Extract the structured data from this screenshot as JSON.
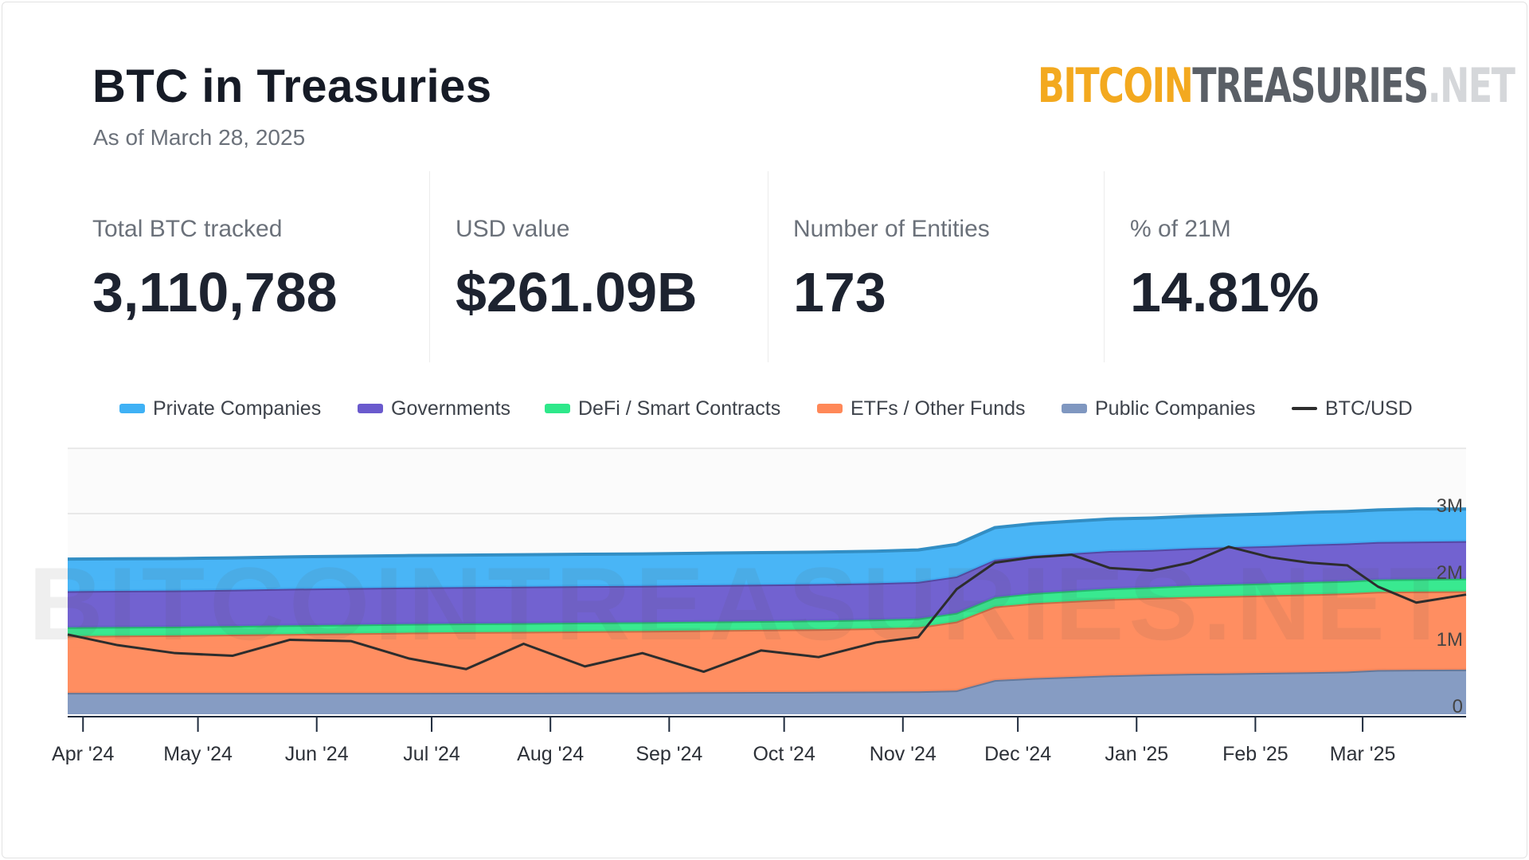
{
  "header": {
    "title": "BTC in Treasuries",
    "subtitle": "As of March 28, 2025",
    "logo": {
      "part1": "BITCOIN",
      "part2": "TREASURIES",
      "part3": ".NET"
    }
  },
  "stats": [
    {
      "label": "Total BTC tracked",
      "value": "3,110,788"
    },
    {
      "label": "USD value",
      "value": "$261.09B"
    },
    {
      "label": "Number of Entities",
      "value": "173"
    },
    {
      "label": "% of 21M",
      "value": "14.81%"
    }
  ],
  "legend": [
    {
      "label": "Private Companies",
      "color": "#3fb1f5"
    },
    {
      "label": "Governments",
      "color": "#6a5acd"
    },
    {
      "label": "DeFi / Smart Contracts",
      "color": "#2ee88a"
    },
    {
      "label": "ETFs / Other Funds",
      "color": "#ff8858"
    },
    {
      "label": "Public Companies",
      "color": "#7f97c0"
    },
    {
      "label": "BTC/USD",
      "color": "#2d2d2d"
    }
  ],
  "watermark": "BITCOINTREASURIES.NET",
  "chart_data": {
    "type": "area",
    "stacked": true,
    "x_dates": [
      "2024-03-28",
      "2024-04-10",
      "2024-04-25",
      "2024-05-10",
      "2024-05-25",
      "2024-06-10",
      "2024-06-25",
      "2024-07-10",
      "2024-07-25",
      "2024-08-10",
      "2024-08-25",
      "2024-09-10",
      "2024-09-25",
      "2024-10-10",
      "2024-10-25",
      "2024-11-05",
      "2024-11-15",
      "2024-11-25",
      "2024-12-05",
      "2024-12-15",
      "2024-12-25",
      "2025-01-05",
      "2025-01-15",
      "2025-01-25",
      "2025-02-05",
      "2025-02-15",
      "2025-02-25",
      "2025-03-05",
      "2025-03-15",
      "2025-03-28"
    ],
    "series": [
      {
        "name": "Public Companies",
        "color": "#7f97c0",
        "values": [
          320000,
          320000,
          320000,
          320000,
          320000,
          320000,
          320000,
          322000,
          322000,
          325000,
          325000,
          330000,
          333000,
          336000,
          340000,
          342000,
          355000,
          510000,
          540000,
          560000,
          580000,
          595000,
          605000,
          612000,
          620000,
          628000,
          638000,
          660000,
          665000,
          668000
        ]
      },
      {
        "name": "ETFs / Other Funds",
        "color": "#ff8858",
        "values": [
          850000,
          855000,
          860000,
          870000,
          880000,
          890000,
          900000,
          905000,
          910000,
          915000,
          920000,
          925000,
          930000,
          935000,
          945000,
          960000,
          1030000,
          1100000,
          1120000,
          1130000,
          1140000,
          1145000,
          1150000,
          1155000,
          1160000,
          1165000,
          1170000,
          1170000,
          1170000,
          1170000
        ]
      },
      {
        "name": "DeFi / Smart Contracts",
        "color": "#2ee88a",
        "values": [
          130000,
          130000,
          130000,
          130000,
          130000,
          130000,
          130000,
          130000,
          130000,
          130000,
          130000,
          130000,
          130000,
          130000,
          130000,
          130000,
          130000,
          140000,
          150000,
          155000,
          160000,
          160000,
          170000,
          175000,
          180000,
          185000,
          185000,
          185000,
          185000,
          190000
        ]
      },
      {
        "name": "Governments",
        "color": "#6a5acd",
        "values": [
          540000,
          540000,
          540000,
          540000,
          545000,
          545000,
          545000,
          545000,
          545000,
          545000,
          545000,
          545000,
          545000,
          545000,
          545000,
          545000,
          545000,
          560000,
          560000,
          560000,
          560000,
          555000,
          555000,
          555000,
          555000,
          560000,
          560000,
          560000,
          560000,
          560000
        ]
      },
      {
        "name": "Private Companies",
        "color": "#3fb1f5",
        "values": [
          480000,
          480000,
          478000,
          478000,
          478000,
          478000,
          478000,
          478000,
          478000,
          478000,
          478000,
          478000,
          478000,
          478000,
          478000,
          480000,
          480000,
          480000,
          480000,
          480000,
          480000,
          480000,
          480000,
          480000,
          480000,
          480000,
          480000,
          480000,
          490000,
          480000
        ]
      },
      {
        "name": "BTC/USD",
        "color": "#2d2d2d",
        "line": true,
        "values": [
          70000,
          66000,
          63000,
          62000,
          68000,
          67500,
          61000,
          57000,
          66500,
          58000,
          63000,
          56000,
          64000,
          61500,
          67000,
          69000,
          87000,
          97000,
          99000,
          100000,
          95000,
          94000,
          97000,
          103000,
          99000,
          97000,
          96000,
          88000,
          82000,
          85000
        ]
      }
    ],
    "xlim": [
      "2024-03-28",
      "2025-03-28"
    ],
    "ylim": [
      0,
      3500000
    ],
    "y_ticks": [
      0,
      1000000,
      2000000,
      3000000
    ],
    "y_tick_labels": [
      "0",
      "1M",
      "2M",
      "3M"
    ],
    "btc_usd_range": [
      40000,
      140000
    ],
    "x_tick_dates": [
      "2024-04-01",
      "2024-05-01",
      "2024-06-01",
      "2024-07-01",
      "2024-08-01",
      "2024-09-01",
      "2024-10-01",
      "2024-11-01",
      "2024-12-01",
      "2025-01-01",
      "2025-02-01",
      "2025-03-01"
    ],
    "x_tick_labels": [
      "Apr '24",
      "May '24",
      "Jun '24",
      "Jul '24",
      "Aug '24",
      "Sep '24",
      "Oct '24",
      "Nov '24",
      "Dec '24",
      "Jan '25",
      "Feb '25",
      "Mar '25"
    ],
    "y_axis_position": "right",
    "grid": true,
    "legend_position": "top"
  }
}
